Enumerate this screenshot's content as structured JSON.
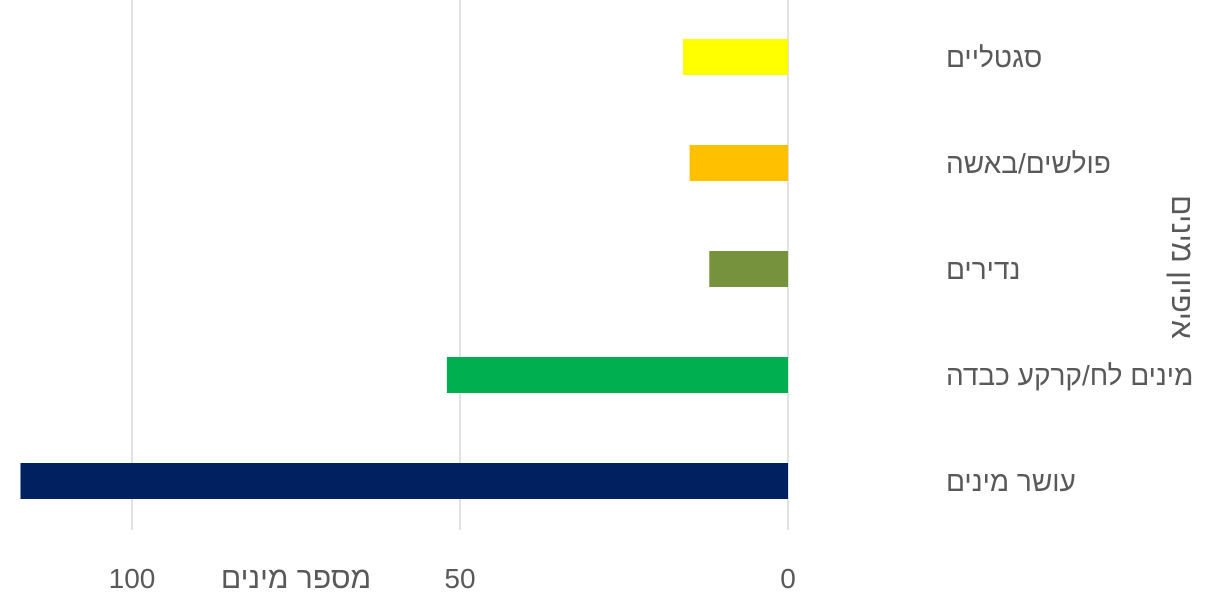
{
  "chart_data": {
    "type": "bar",
    "orientation": "horizontal",
    "direction": "rtl",
    "categories": [
      "סגטליים",
      "פולשים/באשה",
      "נדירים",
      "מינים לח/קרקע כבדה",
      "עושר מינים"
    ],
    "values": [
      16,
      15,
      12,
      52,
      117
    ],
    "colors": [
      "#FFFF00",
      "#FFC000",
      "#76923C",
      "#00B050",
      "#002060"
    ],
    "xlabel": "מספר מינים",
    "ylabel": "איפיון מינים",
    "xlim": [
      0,
      117
    ],
    "xticks": [
      0,
      50,
      100
    ],
    "xtick_labels": [
      "0",
      "50",
      "100"
    ],
    "grid": true,
    "gridline_color": "#d9d9d9",
    "legend": false
  }
}
